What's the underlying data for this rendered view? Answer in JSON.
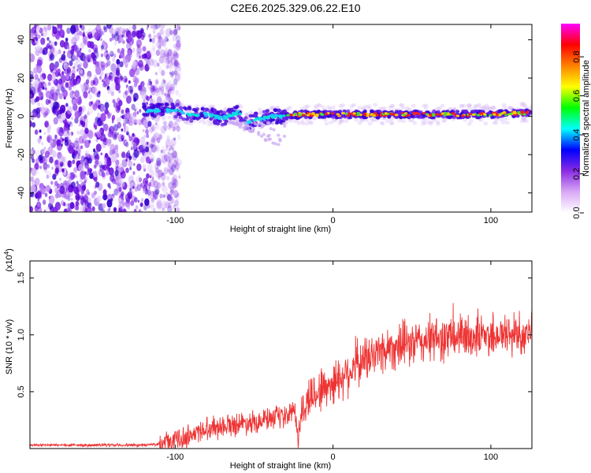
{
  "title": "C2E6.2025.329.06.22.E10",
  "chart_data": [
    {
      "type": "heatmap",
      "title": "C2E6.2025.329.06.22.E10",
      "xlabel": "Height of straight line (km)",
      "ylabel": "Frequency (Hz)",
      "xlim": [
        -192,
        126
      ],
      "ylim": [
        -50,
        48
      ],
      "xticks": [
        -100,
        0,
        100
      ],
      "yticks": [
        -40,
        -20,
        0,
        20,
        40
      ],
      "colorbar": {
        "label": "Normalized spectral amplitude",
        "range": [
          0,
          0.97
        ],
        "ticks": [
          0.0,
          0.2,
          0.4,
          0.6,
          0.8
        ],
        "colors": [
          "#ffffff",
          "#d9a8f5",
          "#8a2be2",
          "#0000ff",
          "#00ffff",
          "#00ff00",
          "#ffff00",
          "#ff8000",
          "#ff0000",
          "#ff00ff"
        ]
      },
      "noise_region_x": [
        -192,
        -97
      ],
      "ridge": {
        "x": [
          -120,
          -100,
          -90,
          -80,
          -70,
          -60,
          -55,
          -50,
          -40,
          -30,
          -20,
          0,
          20,
          40,
          60,
          80,
          100,
          126
        ],
        "y": [
          3,
          3,
          1,
          1,
          -1,
          2,
          -4,
          -2,
          0,
          0,
          1,
          1,
          1,
          1,
          1,
          1,
          1,
          2
        ]
      }
    },
    {
      "type": "line",
      "xlabel": "Height of straight line (km)",
      "ylabel": "SNR (10 * v/v)",
      "yscale_label": "(x10",
      "yscale_exp": "4",
      "xlim": [
        -192,
        126
      ],
      "ylim": [
        0,
        1.65
      ],
      "xticks": [
        -100,
        0,
        100
      ],
      "yticks": [
        0.5,
        1.0,
        1.5
      ],
      "ytick_labels": [
        "0.5",
        "1.0",
        "1.5"
      ],
      "series": [
        {
          "name": "SNR",
          "color": "#ee3333",
          "envelope_x": [
            -192,
            -120,
            -110,
            -100,
            -90,
            -80,
            -70,
            -60,
            -50,
            -40,
            -30,
            -25,
            -22,
            -20,
            -15,
            -10,
            0,
            10,
            20,
            30,
            40,
            50,
            60,
            70,
            80,
            90,
            100,
            110,
            126
          ],
          "envelope_y": [
            0.03,
            0.03,
            0.04,
            0.07,
            0.12,
            0.18,
            0.2,
            0.22,
            0.24,
            0.26,
            0.27,
            0.35,
            0.1,
            0.3,
            0.45,
            0.5,
            0.58,
            0.68,
            0.78,
            0.86,
            0.9,
            0.92,
            0.95,
            0.97,
            0.98,
            0.99,
            1.0,
            1.0,
            1.02
          ]
        }
      ]
    }
  ]
}
